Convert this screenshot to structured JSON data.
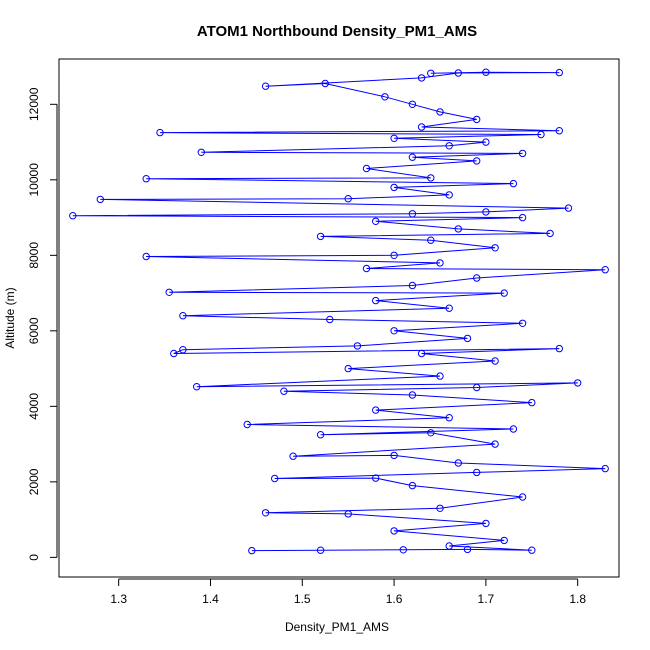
{
  "chart_data": {
    "type": "scatter",
    "title": "ATOM1 Northbound Density_PM1_AMS",
    "xlabel": "Density_PM1_AMS",
    "ylabel": "Altitude (m)",
    "xlim": [
      1.235,
      1.845
    ],
    "ylim": [
      -520,
      13200
    ],
    "x_ticks": [
      1.3,
      1.4,
      1.5,
      1.6,
      1.7,
      1.8
    ],
    "x_tick_labels": [
      "1.3",
      "1.4",
      "1.5",
      "1.6",
      "1.7",
      "1.8"
    ],
    "y_ticks": [
      0,
      2000,
      4000,
      6000,
      8000,
      10000,
      12000
    ],
    "y_tick_labels": [
      "0",
      "2000",
      "4000",
      "6000",
      "8000",
      "10000",
      "12000"
    ],
    "grid": false,
    "legend": "none",
    "marker": "open-circle",
    "connected": true,
    "color": "#0000ff",
    "series": [
      {
        "values": [
          [
            1.445,
            180
          ],
          [
            1.52,
            190
          ],
          [
            1.61,
            200
          ],
          [
            1.68,
            210
          ],
          [
            1.75,
            190
          ],
          [
            1.66,
            300
          ],
          [
            1.72,
            450
          ],
          [
            1.6,
            700
          ],
          [
            1.7,
            900
          ],
          [
            1.55,
            1150
          ],
          [
            1.46,
            1180
          ],
          [
            1.65,
            1300
          ],
          [
            1.74,
            1600
          ],
          [
            1.62,
            1900
          ],
          [
            1.58,
            2100
          ],
          [
            1.47,
            2090
          ],
          [
            1.69,
            2250
          ],
          [
            1.83,
            2350
          ],
          [
            1.67,
            2500
          ],
          [
            1.6,
            2700
          ],
          [
            1.49,
            2680
          ],
          [
            1.71,
            3000
          ],
          [
            1.64,
            3300
          ],
          [
            1.52,
            3250
          ],
          [
            1.73,
            3400
          ],
          [
            1.44,
            3520
          ],
          [
            1.66,
            3700
          ],
          [
            1.58,
            3900
          ],
          [
            1.75,
            4100
          ],
          [
            1.62,
            4300
          ],
          [
            1.48,
            4400
          ],
          [
            1.69,
            4500
          ],
          [
            1.8,
            4620
          ],
          [
            1.385,
            4520
          ],
          [
            1.65,
            4800
          ],
          [
            1.55,
            5000
          ],
          [
            1.71,
            5200
          ],
          [
            1.63,
            5400
          ],
          [
            1.78,
            5530
          ],
          [
            1.36,
            5400
          ],
          [
            1.37,
            5500
          ],
          [
            1.56,
            5600
          ],
          [
            1.68,
            5800
          ],
          [
            1.6,
            6000
          ],
          [
            1.74,
            6200
          ],
          [
            1.53,
            6300
          ],
          [
            1.37,
            6400
          ],
          [
            1.66,
            6600
          ],
          [
            1.58,
            6800
          ],
          [
            1.72,
            7000
          ],
          [
            1.355,
            7020
          ],
          [
            1.62,
            7200
          ],
          [
            1.69,
            7400
          ],
          [
            1.83,
            7620
          ],
          [
            1.57,
            7650
          ],
          [
            1.65,
            7800
          ],
          [
            1.33,
            7970
          ],
          [
            1.6,
            8000
          ],
          [
            1.71,
            8200
          ],
          [
            1.64,
            8400
          ],
          [
            1.52,
            8500
          ],
          [
            1.77,
            8580
          ],
          [
            1.67,
            8700
          ],
          [
            1.58,
            8900
          ],
          [
            1.74,
            9000
          ],
          [
            1.25,
            9050
          ],
          [
            1.62,
            9100
          ],
          [
            1.7,
            9150
          ],
          [
            1.79,
            9250
          ],
          [
            1.28,
            9480
          ],
          [
            1.55,
            9500
          ],
          [
            1.66,
            9600
          ],
          [
            1.6,
            9800
          ],
          [
            1.73,
            9900
          ],
          [
            1.33,
            10030
          ],
          [
            1.64,
            10050
          ],
          [
            1.57,
            10300
          ],
          [
            1.69,
            10500
          ],
          [
            1.62,
            10600
          ],
          [
            1.74,
            10700
          ],
          [
            1.39,
            10730
          ],
          [
            1.66,
            10900
          ],
          [
            1.7,
            11000
          ],
          [
            1.6,
            11100
          ],
          [
            1.76,
            11200
          ],
          [
            1.345,
            11250
          ],
          [
            1.78,
            11300
          ],
          [
            1.63,
            11400
          ],
          [
            1.69,
            11600
          ],
          [
            1.65,
            11800
          ],
          [
            1.62,
            12000
          ],
          [
            1.59,
            12200
          ],
          [
            1.525,
            12550
          ],
          [
            1.46,
            12480
          ],
          [
            1.63,
            12700
          ],
          [
            1.67,
            12830
          ],
          [
            1.78,
            12840
          ],
          [
            1.7,
            12850
          ],
          [
            1.64,
            12820
          ]
        ]
      }
    ]
  }
}
